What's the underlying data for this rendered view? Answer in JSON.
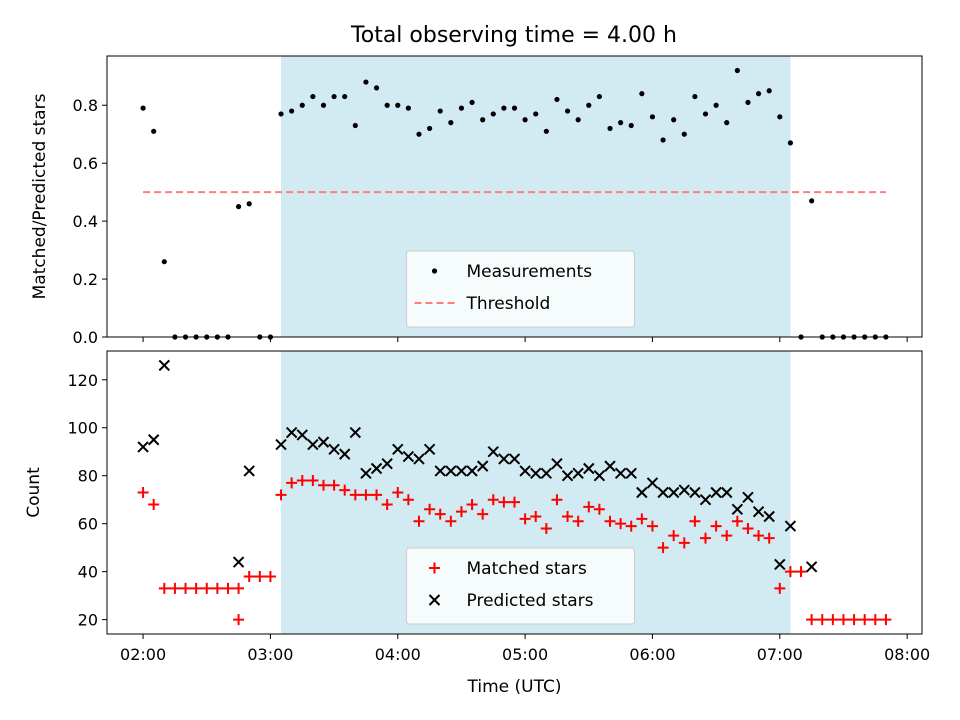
{
  "figure": {
    "title": "Total observing time = 4.00 h"
  },
  "chart_data": [
    {
      "type": "scatter",
      "panel": "top",
      "ylabel": "Matched/Predicted stars",
      "xlabel": "",
      "x_time_range": [
        "01:43",
        "08:07"
      ],
      "ylim": [
        0,
        0.97
      ],
      "yticks": [
        0.0,
        0.2,
        0.4,
        0.6,
        0.8
      ],
      "ytick_labels": [
        "0.0",
        "0.2",
        "0.4",
        "0.6",
        "0.8"
      ],
      "xticks": [
        "02:00",
        "03:00",
        "04:00",
        "05:00",
        "06:00",
        "07:00",
        "08:00"
      ],
      "xtick_labels_shown": false,
      "shaded_interval": [
        "03:05",
        "07:05"
      ],
      "shade_color": "#add8e6",
      "legend_position": "lower center",
      "threshold": {
        "name": "Threshold",
        "value": 0.5,
        "x_range": [
          "02:00",
          "07:50"
        ],
        "color": "#ff7f7f",
        "style": "dashed"
      },
      "series": [
        {
          "name": "Measurements",
          "marker": "dot",
          "color": "#000000",
          "points": [
            [
              "02:00",
              0.79
            ],
            [
              "02:05",
              0.71
            ],
            [
              "02:10",
              0.26
            ],
            [
              "02:15",
              0.0
            ],
            [
              "02:20",
              0.0
            ],
            [
              "02:25",
              0.0
            ],
            [
              "02:30",
              0.0
            ],
            [
              "02:35",
              0.0
            ],
            [
              "02:40",
              0.0
            ],
            [
              "02:45",
              0.45
            ],
            [
              "02:50",
              0.46
            ],
            [
              "02:55",
              0.0
            ],
            [
              "03:00",
              0.0
            ],
            [
              "03:05",
              0.77
            ],
            [
              "03:10",
              0.78
            ],
            [
              "03:15",
              0.8
            ],
            [
              "03:20",
              0.83
            ],
            [
              "03:25",
              0.8
            ],
            [
              "03:30",
              0.83
            ],
            [
              "03:35",
              0.83
            ],
            [
              "03:40",
              0.73
            ],
            [
              "03:45",
              0.88
            ],
            [
              "03:50",
              0.86
            ],
            [
              "03:55",
              0.8
            ],
            [
              "04:00",
              0.8
            ],
            [
              "04:05",
              0.79
            ],
            [
              "04:10",
              0.7
            ],
            [
              "04:15",
              0.72
            ],
            [
              "04:20",
              0.78
            ],
            [
              "04:25",
              0.74
            ],
            [
              "04:30",
              0.79
            ],
            [
              "04:35",
              0.81
            ],
            [
              "04:40",
              0.75
            ],
            [
              "04:45",
              0.77
            ],
            [
              "04:50",
              0.79
            ],
            [
              "04:55",
              0.79
            ],
            [
              "05:00",
              0.75
            ],
            [
              "05:05",
              0.77
            ],
            [
              "05:10",
              0.71
            ],
            [
              "05:15",
              0.82
            ],
            [
              "05:20",
              0.78
            ],
            [
              "05:25",
              0.75
            ],
            [
              "05:30",
              0.8
            ],
            [
              "05:35",
              0.83
            ],
            [
              "05:40",
              0.72
            ],
            [
              "05:45",
              0.74
            ],
            [
              "05:50",
              0.73
            ],
            [
              "05:55",
              0.84
            ],
            [
              "06:00",
              0.76
            ],
            [
              "06:05",
              0.68
            ],
            [
              "06:10",
              0.75
            ],
            [
              "06:15",
              0.7
            ],
            [
              "06:20",
              0.83
            ],
            [
              "06:25",
              0.77
            ],
            [
              "06:30",
              0.8
            ],
            [
              "06:35",
              0.74
            ],
            [
              "06:40",
              0.92
            ],
            [
              "06:45",
              0.81
            ],
            [
              "06:50",
              0.84
            ],
            [
              "06:55",
              0.85
            ],
            [
              "07:00",
              0.76
            ],
            [
              "07:05",
              0.67
            ],
            [
              "07:10",
              0.0
            ],
            [
              "07:15",
              0.47
            ],
            [
              "07:20",
              0.0
            ],
            [
              "07:25",
              0.0
            ],
            [
              "07:30",
              0.0
            ],
            [
              "07:35",
              0.0
            ],
            [
              "07:40",
              0.0
            ],
            [
              "07:45",
              0.0
            ],
            [
              "07:50",
              0.0
            ]
          ]
        }
      ]
    },
    {
      "type": "scatter",
      "panel": "bottom",
      "ylabel": "Count",
      "xlabel": "Time (UTC)",
      "x_time_range": [
        "01:43",
        "08:07"
      ],
      "ylim": [
        14,
        132
      ],
      "yticks": [
        20,
        40,
        60,
        80,
        100,
        120
      ],
      "ytick_labels": [
        "20",
        "40",
        "60",
        "80",
        "100",
        "120"
      ],
      "xticks": [
        "02:00",
        "03:00",
        "04:00",
        "05:00",
        "06:00",
        "07:00",
        "08:00"
      ],
      "xtick_labels": [
        "02:00",
        "03:00",
        "04:00",
        "05:00",
        "06:00",
        "07:00",
        "08:00"
      ],
      "shaded_interval": [
        "03:05",
        "07:05"
      ],
      "shade_color": "#add8e6",
      "legend_position": "lower center",
      "series": [
        {
          "name": "Matched stars",
          "marker": "plus",
          "color": "#ff0000",
          "points": [
            [
              "02:00",
              73
            ],
            [
              "02:05",
              68
            ],
            [
              "02:10",
              33
            ],
            [
              "02:15",
              33
            ],
            [
              "02:20",
              33
            ],
            [
              "02:25",
              33
            ],
            [
              "02:30",
              33
            ],
            [
              "02:35",
              33
            ],
            [
              "02:40",
              33
            ],
            [
              "02:45",
              33
            ],
            [
              "02:45",
              20
            ],
            [
              "02:50",
              38
            ],
            [
              "02:55",
              38
            ],
            [
              "03:00",
              38
            ],
            [
              "03:05",
              72
            ],
            [
              "03:10",
              77
            ],
            [
              "03:15",
              78
            ],
            [
              "03:20",
              78
            ],
            [
              "03:25",
              76
            ],
            [
              "03:30",
              76
            ],
            [
              "03:35",
              74
            ],
            [
              "03:40",
              72
            ],
            [
              "03:45",
              72
            ],
            [
              "03:50",
              72
            ],
            [
              "03:55",
              68
            ],
            [
              "04:00",
              73
            ],
            [
              "04:05",
              70
            ],
            [
              "04:10",
              61
            ],
            [
              "04:15",
              66
            ],
            [
              "04:20",
              64
            ],
            [
              "04:25",
              61
            ],
            [
              "04:30",
              65
            ],
            [
              "04:35",
              68
            ],
            [
              "04:40",
              64
            ],
            [
              "04:45",
              70
            ],
            [
              "04:50",
              69
            ],
            [
              "04:55",
              69
            ],
            [
              "05:00",
              62
            ],
            [
              "05:05",
              63
            ],
            [
              "05:10",
              58
            ],
            [
              "05:15",
              70
            ],
            [
              "05:20",
              63
            ],
            [
              "05:25",
              61
            ],
            [
              "05:30",
              67
            ],
            [
              "05:35",
              66
            ],
            [
              "05:40",
              61
            ],
            [
              "05:45",
              60
            ],
            [
              "05:50",
              59
            ],
            [
              "05:55",
              62
            ],
            [
              "06:00",
              59
            ],
            [
              "06:05",
              50
            ],
            [
              "06:10",
              55
            ],
            [
              "06:15",
              52
            ],
            [
              "06:20",
              61
            ],
            [
              "06:25",
              54
            ],
            [
              "06:30",
              59
            ],
            [
              "06:35",
              55
            ],
            [
              "06:40",
              61
            ],
            [
              "06:45",
              58
            ],
            [
              "06:50",
              55
            ],
            [
              "06:55",
              54
            ],
            [
              "07:00",
              33
            ],
            [
              "07:05",
              40
            ],
            [
              "07:10",
              40
            ],
            [
              "07:15",
              20
            ],
            [
              "07:20",
              20
            ],
            [
              "07:25",
              20
            ],
            [
              "07:30",
              20
            ],
            [
              "07:35",
              20
            ],
            [
              "07:40",
              20
            ],
            [
              "07:45",
              20
            ],
            [
              "07:50",
              20
            ]
          ]
        },
        {
          "name": "Predicted stars",
          "marker": "x",
          "color": "#000000",
          "points": [
            [
              "02:00",
              92
            ],
            [
              "02:05",
              95
            ],
            [
              "02:10",
              126
            ],
            [
              "02:45",
              44
            ],
            [
              "02:50",
              82
            ],
            [
              "03:05",
              93
            ],
            [
              "03:10",
              98
            ],
            [
              "03:15",
              97
            ],
            [
              "03:20",
              93
            ],
            [
              "03:25",
              94
            ],
            [
              "03:30",
              91
            ],
            [
              "03:35",
              89
            ],
            [
              "03:40",
              98
            ],
            [
              "03:45",
              81
            ],
            [
              "03:50",
              83
            ],
            [
              "03:55",
              85
            ],
            [
              "04:00",
              91
            ],
            [
              "04:05",
              88
            ],
            [
              "04:10",
              87
            ],
            [
              "04:15",
              91
            ],
            [
              "04:20",
              82
            ],
            [
              "04:25",
              82
            ],
            [
              "04:30",
              82
            ],
            [
              "04:35",
              82
            ],
            [
              "04:40",
              84
            ],
            [
              "04:45",
              90
            ],
            [
              "04:50",
              87
            ],
            [
              "04:55",
              87
            ],
            [
              "05:00",
              82
            ],
            [
              "05:05",
              81
            ],
            [
              "05:10",
              81
            ],
            [
              "05:15",
              85
            ],
            [
              "05:20",
              80
            ],
            [
              "05:25",
              81
            ],
            [
              "05:30",
              83
            ],
            [
              "05:35",
              80
            ],
            [
              "05:40",
              84
            ],
            [
              "05:45",
              81
            ],
            [
              "05:50",
              81
            ],
            [
              "05:55",
              73
            ],
            [
              "06:00",
              77
            ],
            [
              "06:05",
              73
            ],
            [
              "06:10",
              73
            ],
            [
              "06:15",
              74
            ],
            [
              "06:20",
              73
            ],
            [
              "06:25",
              70
            ],
            [
              "06:30",
              73
            ],
            [
              "06:35",
              73
            ],
            [
              "06:40",
              66
            ],
            [
              "06:45",
              71
            ],
            [
              "06:50",
              65
            ],
            [
              "06:55",
              63
            ],
            [
              "07:00",
              43
            ],
            [
              "07:05",
              59
            ],
            [
              "07:15",
              42
            ]
          ]
        }
      ]
    }
  ]
}
